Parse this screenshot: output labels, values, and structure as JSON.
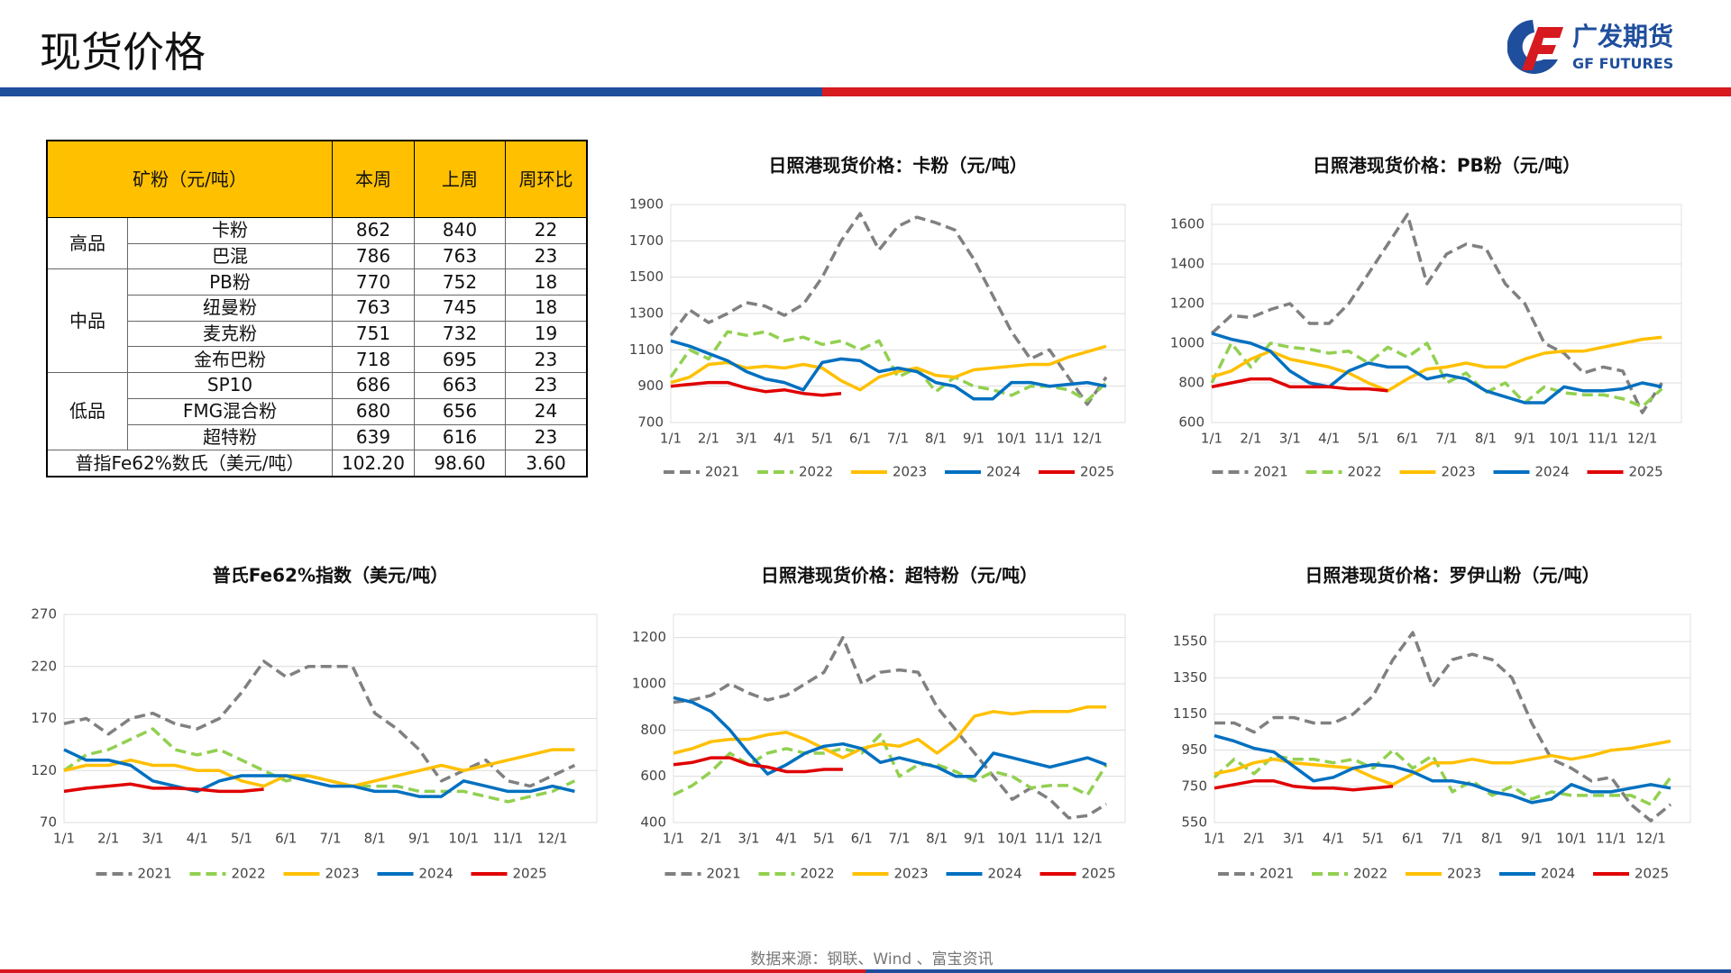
{
  "header": {
    "title": "现货价格",
    "logo_cn": "广发期货",
    "logo_en": "GF FUTURES"
  },
  "table": {
    "columns": [
      "矿粉（元/吨）",
      "本周",
      "上周",
      "周环比"
    ],
    "groups": [
      {
        "name": "高品",
        "rows": [
          [
            "卡粉",
            "862",
            "840",
            "22"
          ],
          [
            "巴混",
            "786",
            "763",
            "23"
          ]
        ]
      },
      {
        "name": "中品",
        "rows": [
          [
            "PB粉",
            "770",
            "752",
            "18"
          ],
          [
            "纽曼粉",
            "763",
            "745",
            "18"
          ],
          [
            "麦克粉",
            "751",
            "732",
            "19"
          ],
          [
            "金布巴粉",
            "718",
            "695",
            "23"
          ]
        ]
      },
      {
        "name": "低品",
        "rows": [
          [
            "SP10",
            "686",
            "663",
            "23"
          ],
          [
            "FMG混合粉",
            "680",
            "656",
            "24"
          ],
          [
            "超特粉",
            "639",
            "616",
            "23"
          ]
        ]
      }
    ],
    "footer_row": [
      "普指Fe62%数氏（美元/吨）",
      "102.20",
      "98.60",
      "3.60"
    ]
  },
  "chart_data": [
    {
      "type": "line",
      "title": "日照港现货价格：卡粉（元/吨）",
      "grid": true,
      "legend": "bottom",
      "categories": [
        "1/1",
        null,
        "2/1",
        null,
        "3/1",
        null,
        "4/1",
        null,
        "5/1",
        null,
        "6/1",
        null,
        "7/1",
        null,
        "8/1",
        null,
        "9/1",
        null,
        "10/1",
        null,
        "11/1",
        null,
        "12/1",
        null
      ],
      "ylim": [
        700,
        1900
      ],
      "yticks": [
        700,
        900,
        1100,
        1300,
        1500,
        1700,
        1900
      ],
      "series": [
        {
          "name": "2021",
          "color": "#808080",
          "dashed": true,
          "values": [
            1180,
            1320,
            1250,
            1300,
            1360,
            1340,
            1290,
            1350,
            1500,
            1700,
            1850,
            1650,
            1780,
            1830,
            1800,
            1760,
            1600,
            1400,
            1200,
            1050,
            1100,
            950,
            800,
            950
          ]
        },
        {
          "name": "2022",
          "color": "#92d050",
          "dashed": true,
          "values": [
            950,
            1100,
            1050,
            1200,
            1180,
            1200,
            1150,
            1170,
            1130,
            1150,
            1100,
            1150,
            950,
            1000,
            870,
            950,
            900,
            880,
            850,
            900,
            900,
            880,
            820,
            920
          ]
        },
        {
          "name": "2023",
          "color": "#ffc000",
          "values": [
            920,
            950,
            1020,
            1030,
            1000,
            1010,
            1000,
            1020,
            1000,
            930,
            880,
            950,
            980,
            1000,
            960,
            950,
            990,
            1000,
            1010,
            1020,
            1020,
            1060,
            1090,
            1120
          ]
        },
        {
          "name": "2024",
          "color": "#0070c0",
          "values": [
            1150,
            1120,
            1080,
            1040,
            980,
            940,
            920,
            880,
            1030,
            1050,
            1040,
            980,
            1000,
            980,
            920,
            900,
            830,
            830,
            920,
            920,
            900,
            910,
            920,
            900
          ]
        },
        {
          "name": "2025",
          "color": "#e00000",
          "values": [
            900,
            910,
            920,
            920,
            890,
            870,
            880,
            860,
            850,
            860,
            null,
            null,
            null,
            null,
            null,
            null,
            null,
            null,
            null,
            null,
            null,
            null,
            null,
            null
          ]
        }
      ]
    },
    {
      "type": "line",
      "title": "日照港现货价格：PB粉（元/吨）",
      "grid": true,
      "legend": "bottom",
      "categories": [
        "1/1",
        null,
        "2/1",
        null,
        "3/1",
        null,
        "4/1",
        null,
        "5/1",
        null,
        "6/1",
        null,
        "7/1",
        null,
        "8/1",
        null,
        "9/1",
        null,
        "10/1",
        null,
        "11/1",
        null,
        "12/1",
        null
      ],
      "ylim": [
        600,
        1700
      ],
      "yticks": [
        600,
        800,
        1000,
        1200,
        1400,
        1600
      ],
      "series": [
        {
          "name": "2021",
          "color": "#808080",
          "dashed": true,
          "values": [
            1050,
            1140,
            1130,
            1170,
            1200,
            1100,
            1100,
            1200,
            1350,
            1500,
            1650,
            1300,
            1450,
            1500,
            1480,
            1300,
            1200,
            1000,
            950,
            850,
            880,
            860,
            650,
            800
          ]
        },
        {
          "name": "2022",
          "color": "#92d050",
          "dashed": true,
          "values": [
            800,
            1000,
            880,
            1000,
            980,
            970,
            950,
            960,
            900,
            980,
            930,
            1000,
            800,
            850,
            750,
            800,
            700,
            780,
            750,
            740,
            740,
            720,
            680,
            770
          ]
        },
        {
          "name": "2023",
          "color": "#ffc000",
          "values": [
            830,
            860,
            920,
            960,
            920,
            900,
            880,
            850,
            800,
            760,
            820,
            870,
            880,
            900,
            880,
            880,
            920,
            950,
            960,
            960,
            980,
            1000,
            1020,
            1030
          ]
        },
        {
          "name": "2024",
          "color": "#0070c0",
          "values": [
            1050,
            1020,
            1000,
            960,
            860,
            800,
            780,
            860,
            900,
            880,
            880,
            820,
            840,
            820,
            760,
            730,
            700,
            700,
            780,
            760,
            760,
            770,
            800,
            780
          ]
        },
        {
          "name": "2025",
          "color": "#e00000",
          "values": [
            780,
            800,
            820,
            820,
            780,
            780,
            780,
            770,
            770,
            760,
            null,
            null,
            null,
            null,
            null,
            null,
            null,
            null,
            null,
            null,
            null,
            null,
            null,
            null
          ]
        }
      ]
    },
    {
      "type": "line",
      "title": "普氏Fe62%指数（美元/吨）",
      "grid": true,
      "legend": "bottom",
      "categories": [
        "1/1",
        null,
        "2/1",
        null,
        "3/1",
        null,
        "4/1",
        null,
        "5/1",
        null,
        "6/1",
        null,
        "7/1",
        null,
        "8/1",
        null,
        "9/1",
        null,
        "10/1",
        null,
        "11/1",
        null,
        "12/1",
        null
      ],
      "ylim": [
        70,
        270
      ],
      "yticks": [
        70,
        120,
        170,
        220,
        270
      ],
      "series": [
        {
          "name": "2021",
          "color": "#808080",
          "dashed": true,
          "values": [
            165,
            170,
            155,
            170,
            175,
            165,
            160,
            170,
            195,
            225,
            210,
            220,
            220,
            220,
            175,
            160,
            140,
            110,
            120,
            130,
            110,
            105,
            115,
            125
          ]
        },
        {
          "name": "2022",
          "color": "#92d050",
          "dashed": true,
          "values": [
            120,
            135,
            140,
            150,
            160,
            140,
            135,
            140,
            130,
            120,
            110,
            115,
            110,
            105,
            105,
            105,
            100,
            100,
            100,
            95,
            90,
            95,
            100,
            110
          ]
        },
        {
          "name": "2023",
          "color": "#ffc000",
          "values": [
            120,
            125,
            125,
            130,
            125,
            125,
            120,
            120,
            110,
            105,
            115,
            115,
            110,
            105,
            110,
            115,
            120,
            125,
            120,
            125,
            130,
            135,
            140,
            140
          ]
        },
        {
          "name": "2024",
          "color": "#0070c0",
          "values": [
            140,
            130,
            130,
            125,
            110,
            105,
            100,
            110,
            115,
            115,
            115,
            110,
            105,
            105,
            100,
            100,
            95,
            95,
            110,
            105,
            100,
            100,
            105,
            100
          ]
        },
        {
          "name": "2025",
          "color": "#e00000",
          "values": [
            100,
            103,
            105,
            107,
            103,
            103,
            102,
            100,
            100,
            102,
            null,
            null,
            null,
            null,
            null,
            null,
            null,
            null,
            null,
            null,
            null,
            null,
            null,
            null
          ]
        }
      ]
    },
    {
      "type": "line",
      "title": "日照港现货价格：超特粉（元/吨）",
      "grid": true,
      "legend": "bottom",
      "categories": [
        "1/1",
        null,
        "2/1",
        null,
        "3/1",
        null,
        "4/1",
        null,
        "5/1",
        null,
        "6/1",
        null,
        "7/1",
        null,
        "8/1",
        null,
        "9/1",
        null,
        "10/1",
        null,
        "11/1",
        null,
        "12/1",
        null
      ],
      "ylim": [
        400,
        1300
      ],
      "yticks": [
        400,
        600,
        800,
        1000,
        1200
      ],
      "series": [
        {
          "name": "2021",
          "color": "#808080",
          "dashed": true,
          "values": [
            920,
            930,
            950,
            1000,
            960,
            930,
            950,
            1000,
            1050,
            1200,
            1000,
            1050,
            1060,
            1050,
            900,
            800,
            700,
            600,
            500,
            550,
            500,
            420,
            430,
            480
          ]
        },
        {
          "name": "2022",
          "color": "#92d050",
          "dashed": true,
          "values": [
            520,
            560,
            620,
            700,
            650,
            700,
            720,
            700,
            700,
            720,
            700,
            780,
            600,
            650,
            650,
            620,
            580,
            620,
            600,
            550,
            560,
            560,
            520,
            650
          ]
        },
        {
          "name": "2023",
          "color": "#ffc000",
          "values": [
            700,
            720,
            750,
            760,
            760,
            780,
            790,
            760,
            720,
            680,
            720,
            740,
            730,
            760,
            700,
            760,
            860,
            880,
            870,
            880,
            880,
            880,
            900,
            900
          ]
        },
        {
          "name": "2024",
          "color": "#0070c0",
          "values": [
            940,
            920,
            880,
            800,
            700,
            610,
            650,
            700,
            730,
            740,
            720,
            660,
            680,
            660,
            640,
            600,
            600,
            700,
            680,
            660,
            640,
            660,
            680,
            650
          ]
        },
        {
          "name": "2025",
          "color": "#e00000",
          "values": [
            650,
            660,
            680,
            680,
            650,
            640,
            620,
            620,
            630,
            630,
            null,
            null,
            null,
            null,
            null,
            null,
            null,
            null,
            null,
            null,
            null,
            null,
            null,
            null
          ]
        }
      ]
    },
    {
      "type": "line",
      "title": "日照港现货价格：罗伊山粉（元/吨）",
      "grid": true,
      "legend": "bottom",
      "categories": [
        "1/1",
        null,
        "2/1",
        null,
        "3/1",
        null,
        "4/1",
        null,
        "5/1",
        null,
        "6/1",
        null,
        "7/1",
        null,
        "8/1",
        null,
        "9/1",
        null,
        "10/1",
        null,
        "11/1",
        null,
        "12/1",
        null
      ],
      "ylim": [
        550,
        1700
      ],
      "yticks": [
        550,
        750,
        950,
        1150,
        1350,
        1550
      ],
      "series": [
        {
          "name": "2021",
          "color": "#808080",
          "dashed": true,
          "values": [
            1100,
            1100,
            1050,
            1130,
            1130,
            1100,
            1100,
            1150,
            1250,
            1450,
            1600,
            1300,
            1450,
            1480,
            1450,
            1350,
            1100,
            900,
            850,
            780,
            800,
            650,
            560,
            650
          ]
        },
        {
          "name": "2022",
          "color": "#92d050",
          "dashed": true,
          "values": [
            800,
            900,
            820,
            920,
            900,
            900,
            880,
            900,
            850,
            950,
            850,
            920,
            720,
            780,
            700,
            750,
            680,
            720,
            700,
            700,
            700,
            700,
            650,
            800
          ]
        },
        {
          "name": "2023",
          "color": "#ffc000",
          "values": [
            820,
            840,
            880,
            900,
            880,
            870,
            860,
            850,
            800,
            760,
            820,
            880,
            880,
            900,
            880,
            880,
            900,
            920,
            900,
            920,
            950,
            960,
            980,
            1000
          ]
        },
        {
          "name": "2024",
          "color": "#0070c0",
          "values": [
            1030,
            1000,
            960,
            940,
            860,
            780,
            800,
            850,
            870,
            860,
            830,
            780,
            780,
            760,
            720,
            700,
            660,
            680,
            760,
            720,
            720,
            740,
            760,
            740
          ]
        },
        {
          "name": "2025",
          "color": "#e00000",
          "values": [
            740,
            760,
            780,
            780,
            750,
            740,
            740,
            730,
            740,
            750,
            null,
            null,
            null,
            null,
            null,
            null,
            null,
            null,
            null,
            null,
            null,
            null,
            null,
            null
          ]
        }
      ]
    }
  ],
  "source": "数据来源：钢联、Wind 、富宝资讯"
}
